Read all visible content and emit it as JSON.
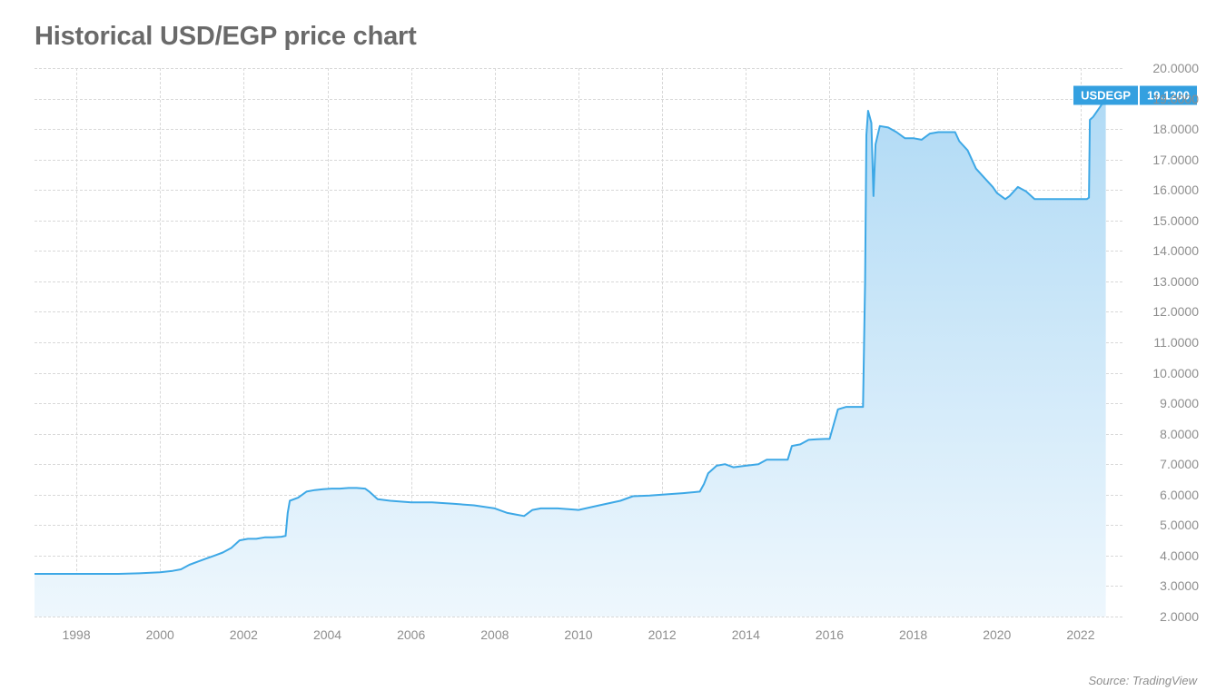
{
  "title": "Historical USD/EGP price chart",
  "source": "Source: TradingView",
  "chart": {
    "type": "area",
    "pair_label": "USDEGP",
    "last_value_label": "19.1200",
    "last_value": 19.12,
    "line_color": "#3da8e6",
    "line_width": 2,
    "fill_top_color": "#b0daf5",
    "fill_bottom_color": "#eef7fd",
    "background_color": "#ffffff",
    "grid_color": "#d8d8d8",
    "axis_label_color": "#8e8e8e",
    "axis_label_fontsize": 14,
    "badge_bg": "#34a0e0",
    "badge_text_color": "#ffffff",
    "x": {
      "min": 1997,
      "max": 2023,
      "ticks": [
        1998,
        2000,
        2002,
        2004,
        2006,
        2008,
        2010,
        2012,
        2014,
        2016,
        2018,
        2020,
        2022
      ],
      "tick_labels": [
        "1998",
        "2000",
        "2002",
        "2004",
        "2006",
        "2008",
        "2010",
        "2012",
        "2014",
        "2016",
        "2018",
        "2020",
        "2022"
      ]
    },
    "y": {
      "min": 2,
      "max": 20,
      "ticks": [
        2,
        3,
        4,
        5,
        6,
        7,
        8,
        9,
        10,
        11,
        12,
        13,
        14,
        15,
        16,
        17,
        18,
        19,
        20
      ],
      "tick_labels": [
        "2.0000",
        "3.0000",
        "4.0000",
        "5.0000",
        "6.0000",
        "7.0000",
        "8.0000",
        "9.0000",
        "10.0000",
        "11.0000",
        "12.0000",
        "13.0000",
        "14.0000",
        "15.0000",
        "16.0000",
        "17.0000",
        "18.0000",
        "19.0000",
        "20.0000"
      ]
    },
    "series": [
      {
        "x": 1997.0,
        "y": 3.4
      },
      {
        "x": 1998.0,
        "y": 3.4
      },
      {
        "x": 1999.0,
        "y": 3.4
      },
      {
        "x": 1999.5,
        "y": 3.42
      },
      {
        "x": 2000.0,
        "y": 3.45
      },
      {
        "x": 2000.3,
        "y": 3.5
      },
      {
        "x": 2000.5,
        "y": 3.55
      },
      {
        "x": 2000.7,
        "y": 3.7
      },
      {
        "x": 2000.9,
        "y": 3.8
      },
      {
        "x": 2001.1,
        "y": 3.9
      },
      {
        "x": 2001.3,
        "y": 4.0
      },
      {
        "x": 2001.5,
        "y": 4.1
      },
      {
        "x": 2001.7,
        "y": 4.25
      },
      {
        "x": 2001.9,
        "y": 4.5
      },
      {
        "x": 2002.1,
        "y": 4.55
      },
      {
        "x": 2002.3,
        "y": 4.55
      },
      {
        "x": 2002.5,
        "y": 4.6
      },
      {
        "x": 2002.7,
        "y": 4.6
      },
      {
        "x": 2002.9,
        "y": 4.62
      },
      {
        "x": 2003.0,
        "y": 4.65
      },
      {
        "x": 2003.05,
        "y": 5.4
      },
      {
        "x": 2003.1,
        "y": 5.8
      },
      {
        "x": 2003.3,
        "y": 5.9
      },
      {
        "x": 2003.5,
        "y": 6.1
      },
      {
        "x": 2003.7,
        "y": 6.15
      },
      {
        "x": 2003.9,
        "y": 6.18
      },
      {
        "x": 2004.1,
        "y": 6.2
      },
      {
        "x": 2004.3,
        "y": 6.2
      },
      {
        "x": 2004.5,
        "y": 6.22
      },
      {
        "x": 2004.7,
        "y": 6.22
      },
      {
        "x": 2004.9,
        "y": 6.2
      },
      {
        "x": 2005.0,
        "y": 6.1
      },
      {
        "x": 2005.2,
        "y": 5.85
      },
      {
        "x": 2005.5,
        "y": 5.8
      },
      {
        "x": 2006.0,
        "y": 5.75
      },
      {
        "x": 2006.5,
        "y": 5.75
      },
      {
        "x": 2007.0,
        "y": 5.7
      },
      {
        "x": 2007.5,
        "y": 5.65
      },
      {
        "x": 2008.0,
        "y": 5.55
      },
      {
        "x": 2008.3,
        "y": 5.4
      },
      {
        "x": 2008.5,
        "y": 5.35
      },
      {
        "x": 2008.7,
        "y": 5.3
      },
      {
        "x": 2008.9,
        "y": 5.5
      },
      {
        "x": 2009.1,
        "y": 5.55
      },
      {
        "x": 2009.5,
        "y": 5.55
      },
      {
        "x": 2010.0,
        "y": 5.5
      },
      {
        "x": 2010.5,
        "y": 5.65
      },
      {
        "x": 2011.0,
        "y": 5.8
      },
      {
        "x": 2011.3,
        "y": 5.95
      },
      {
        "x": 2011.7,
        "y": 5.97
      },
      {
        "x": 2012.0,
        "y": 6.0
      },
      {
        "x": 2012.5,
        "y": 6.05
      },
      {
        "x": 2012.9,
        "y": 6.1
      },
      {
        "x": 2013.0,
        "y": 6.35
      },
      {
        "x": 2013.1,
        "y": 6.7
      },
      {
        "x": 2013.3,
        "y": 6.95
      },
      {
        "x": 2013.5,
        "y": 7.0
      },
      {
        "x": 2013.7,
        "y": 6.9
      },
      {
        "x": 2014.0,
        "y": 6.95
      },
      {
        "x": 2014.3,
        "y": 7.0
      },
      {
        "x": 2014.5,
        "y": 7.15
      },
      {
        "x": 2014.7,
        "y": 7.15
      },
      {
        "x": 2015.0,
        "y": 7.15
      },
      {
        "x": 2015.1,
        "y": 7.6
      },
      {
        "x": 2015.3,
        "y": 7.65
      },
      {
        "x": 2015.5,
        "y": 7.8
      },
      {
        "x": 2015.7,
        "y": 7.82
      },
      {
        "x": 2015.9,
        "y": 7.83
      },
      {
        "x": 2016.0,
        "y": 7.83
      },
      {
        "x": 2016.2,
        "y": 8.8
      },
      {
        "x": 2016.4,
        "y": 8.88
      },
      {
        "x": 2016.6,
        "y": 8.88
      },
      {
        "x": 2016.8,
        "y": 8.88
      },
      {
        "x": 2016.85,
        "y": 13.0
      },
      {
        "x": 2016.88,
        "y": 17.8
      },
      {
        "x": 2016.92,
        "y": 18.6
      },
      {
        "x": 2017.0,
        "y": 18.2
      },
      {
        "x": 2017.05,
        "y": 15.8
      },
      {
        "x": 2017.1,
        "y": 17.5
      },
      {
        "x": 2017.2,
        "y": 18.1
      },
      {
        "x": 2017.4,
        "y": 18.05
      },
      {
        "x": 2017.6,
        "y": 17.9
      },
      {
        "x": 2017.8,
        "y": 17.7
      },
      {
        "x": 2018.0,
        "y": 17.7
      },
      {
        "x": 2018.2,
        "y": 17.65
      },
      {
        "x": 2018.4,
        "y": 17.85
      },
      {
        "x": 2018.6,
        "y": 17.9
      },
      {
        "x": 2018.8,
        "y": 17.9
      },
      {
        "x": 2019.0,
        "y": 17.9
      },
      {
        "x": 2019.1,
        "y": 17.6
      },
      {
        "x": 2019.3,
        "y": 17.3
      },
      {
        "x": 2019.5,
        "y": 16.7
      },
      {
        "x": 2019.7,
        "y": 16.4
      },
      {
        "x": 2019.9,
        "y": 16.1
      },
      {
        "x": 2020.0,
        "y": 15.9
      },
      {
        "x": 2020.2,
        "y": 15.7
      },
      {
        "x": 2020.25,
        "y": 15.75
      },
      {
        "x": 2020.3,
        "y": 15.8
      },
      {
        "x": 2020.5,
        "y": 16.1
      },
      {
        "x": 2020.7,
        "y": 15.95
      },
      {
        "x": 2020.9,
        "y": 15.7
      },
      {
        "x": 2021.0,
        "y": 15.7
      },
      {
        "x": 2021.3,
        "y": 15.7
      },
      {
        "x": 2021.6,
        "y": 15.7
      },
      {
        "x": 2021.9,
        "y": 15.7
      },
      {
        "x": 2022.0,
        "y": 15.7
      },
      {
        "x": 2022.15,
        "y": 15.7
      },
      {
        "x": 2022.2,
        "y": 15.75
      },
      {
        "x": 2022.22,
        "y": 18.3
      },
      {
        "x": 2022.3,
        "y": 18.4
      },
      {
        "x": 2022.5,
        "y": 18.8
      },
      {
        "x": 2022.6,
        "y": 19.12
      }
    ]
  }
}
